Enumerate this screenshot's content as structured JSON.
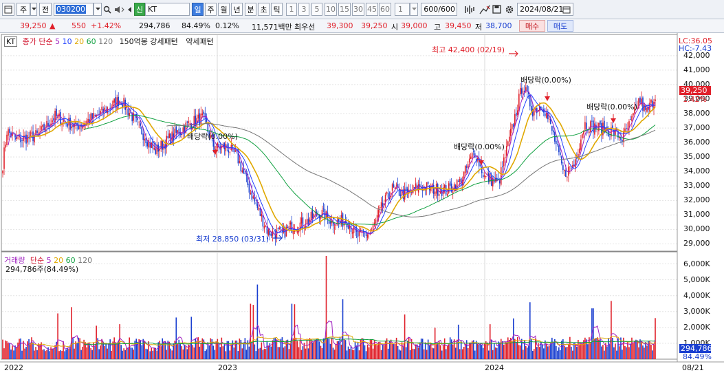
{
  "toolbar": {
    "market_label": "주",
    "full_label": "전",
    "code": "030200",
    "credit_badge": "신",
    "name": "KT",
    "periods": [
      "일",
      "주",
      "월",
      "년",
      "분",
      "초",
      "틱"
    ],
    "intervals": [
      "1",
      "3",
      "5",
      "10",
      "15",
      "30",
      "45",
      "60"
    ],
    "custom_interval": "1",
    "count": "600",
    "count_total": "/600",
    "date": "2024/08/21",
    "icons": [
      "window-icon",
      "dropdown-icon",
      "search-icon",
      "speaker-icon",
      "prev-icon",
      "next-icon",
      "dropdown-icon",
      "chart-tools-icon",
      "draw-tools-icon",
      "save-icon",
      "gear-icon",
      "calendar-icon"
    ]
  },
  "price": {
    "current": "39,250",
    "change_arrow": "▲",
    "change": "550",
    "change_pct": "+1.42%",
    "volume": "294,786",
    "volume_ratio": "84.49%",
    "turnover_pct": "0.12%",
    "amount": "11,571백만",
    "best_ask_label": "최우선",
    "best_ask": "39,300",
    "best_bid": "39,250",
    "open_label": "시",
    "open": "39,000",
    "high_label": "고",
    "high": "39,450",
    "low_label": "저",
    "low": "38,700",
    "buy_button": "매수",
    "sell_button": "매도"
  },
  "legend": {
    "stock_tag": "KT",
    "ma_title": "종가 단순",
    "ma_periods": [
      "5",
      "10",
      "20",
      "60",
      "120"
    ],
    "ma_colors": [
      "#a020c0",
      "#2040ff",
      "#e0a800",
      "#10a040",
      "#777777"
    ],
    "strong_pattern": "150억봉 강세패턴",
    "weak_pattern": "약세패턴"
  },
  "annotations": {
    "high": "최고 42,400 (02/19)",
    "low": "최저 28,850 (03/31)",
    "dividends": [
      "배당락(0.00%)",
      "배당락(0.00%)",
      "배당락(0.00%)",
      "배당락(0.00%)"
    ]
  },
  "right_axis": {
    "lc": "LC:36.05",
    "hc": "HC:-7.43",
    "price_ticks": [
      "42,000",
      "41,000",
      "40,000",
      "39,000",
      "38,000",
      "37,000",
      "36,000",
      "35,000",
      "34,000",
      "33,000",
      "32,000",
      "31,000",
      "30,000",
      "29,000"
    ],
    "current_price": "39,250",
    "current_pct": "1.42%",
    "volume_ticks": [
      "6,000K",
      "5,000K",
      "4,000K",
      "3,000K",
      "2,000K",
      "1,000K"
    ],
    "current_volume": "294,786",
    "current_volume_pct": "84.49%",
    "up_color": "#e0202a",
    "down_color": "#1a3fd0"
  },
  "volume_legend": {
    "title": "거래량",
    "ma_title": "단순",
    "ma_periods": [
      "5",
      "20",
      "60",
      "120"
    ],
    "value": "294,786주(84.49%)"
  },
  "x_axis": {
    "labels": [
      "2022",
      "2023",
      "2024"
    ],
    "end_label": "08/21"
  },
  "chart_data": {
    "type": "candlestick",
    "y_range": [
      28500,
      42800
    ],
    "volume_range_k": [
      0,
      6500
    ],
    "anchors": [
      [
        0,
        33000
      ],
      [
        10,
        36800
      ],
      [
        25,
        36200
      ],
      [
        55,
        36500
      ],
      [
        80,
        37800
      ],
      [
        110,
        37100
      ],
      [
        140,
        37800
      ],
      [
        175,
        39000
      ],
      [
        195,
        37600
      ],
      [
        225,
        35400
      ],
      [
        245,
        36200
      ],
      [
        275,
        37300
      ],
      [
        295,
        37700
      ],
      [
        312,
        35600
      ],
      [
        330,
        35700
      ],
      [
        345,
        35000
      ],
      [
        365,
        32500
      ],
      [
        390,
        29800
      ],
      [
        410,
        29700
      ],
      [
        425,
        30200
      ],
      [
        445,
        30500
      ],
      [
        465,
        31200
      ],
      [
        485,
        30500
      ],
      [
        505,
        30600
      ],
      [
        520,
        29500
      ],
      [
        540,
        29800
      ],
      [
        555,
        31500
      ],
      [
        570,
        32800
      ],
      [
        590,
        32400
      ],
      [
        610,
        33000
      ],
      [
        630,
        32800
      ],
      [
        650,
        32700
      ],
      [
        670,
        33300
      ],
      [
        690,
        35400
      ],
      [
        705,
        33600
      ],
      [
        725,
        33200
      ],
      [
        745,
        37000
      ],
      [
        760,
        40000
      ],
      [
        775,
        38200
      ],
      [
        790,
        38600
      ],
      [
        805,
        36500
      ],
      [
        820,
        33800
      ],
      [
        835,
        34500
      ],
      [
        850,
        37300
      ],
      [
        870,
        37000
      ],
      [
        890,
        36800
      ],
      [
        905,
        36300
      ],
      [
        918,
        37400
      ],
      [
        930,
        39000
      ],
      [
        940,
        38000
      ],
      [
        953,
        39250
      ]
    ]
  }
}
